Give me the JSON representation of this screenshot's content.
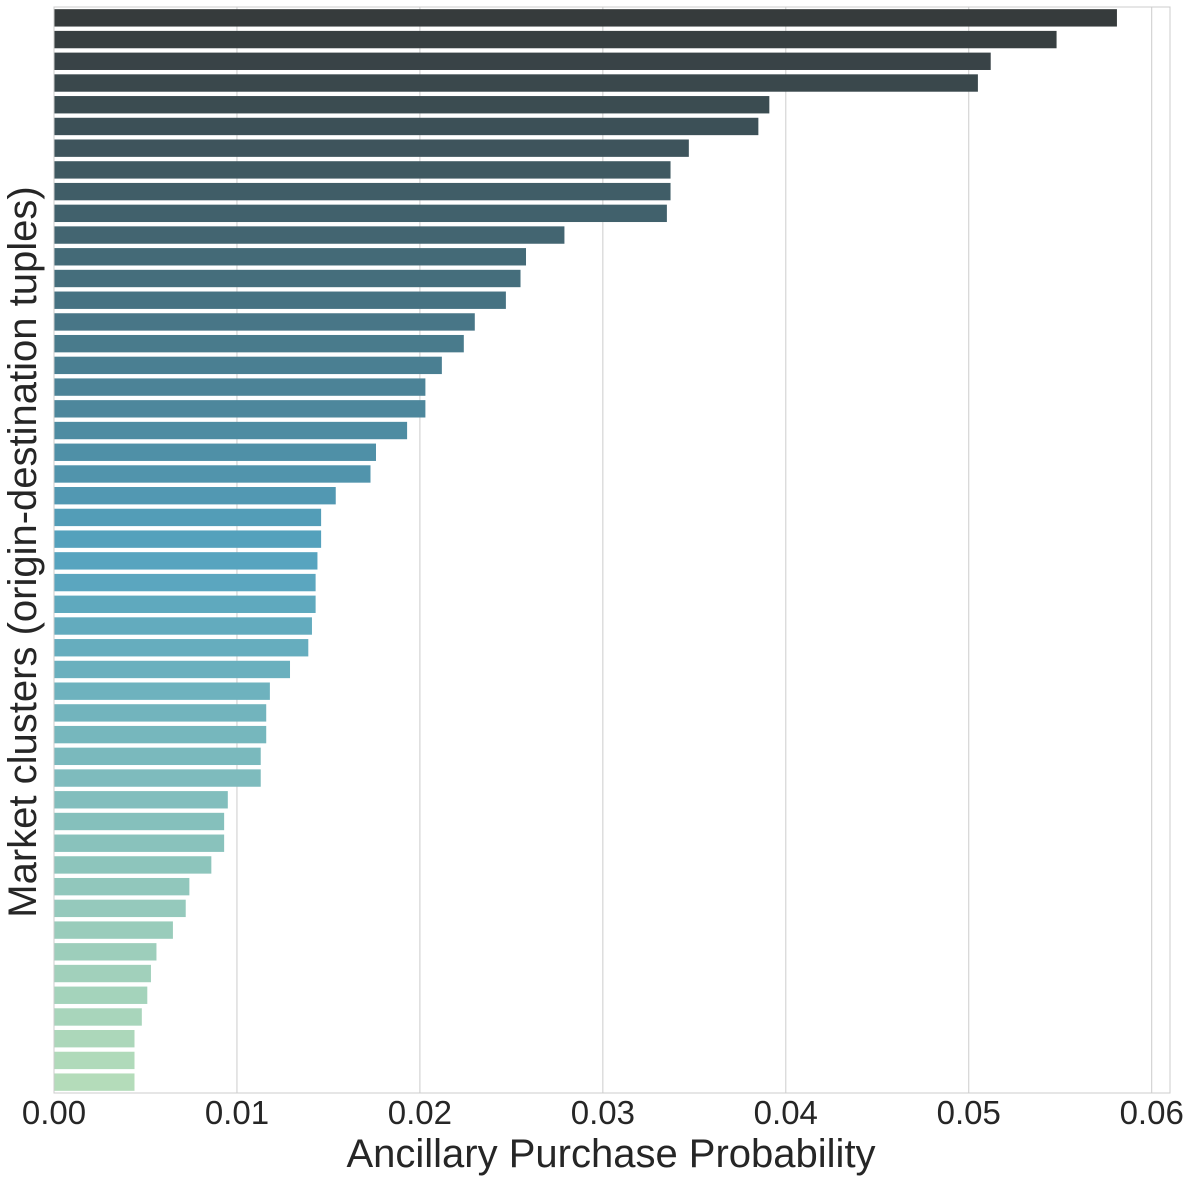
{
  "chart_data": {
    "type": "bar",
    "orientation": "horizontal",
    "xlabel": "Ancillary Purchase Probability",
    "ylabel": "Market clusters (origin-destination tuples)",
    "xlim": [
      0,
      0.061
    ],
    "xticks": [
      0.0,
      0.01,
      0.02,
      0.03,
      0.04,
      0.05,
      0.06
    ],
    "xtick_labels": [
      "0.00",
      "0.01",
      "0.02",
      "0.03",
      "0.04",
      "0.05",
      "0.06"
    ],
    "grid": "vertical",
    "palette": "GnBu_d",
    "values": [
      0.0581,
      0.0548,
      0.0512,
      0.0505,
      0.0391,
      0.0385,
      0.0347,
      0.0337,
      0.0337,
      0.0335,
      0.0279,
      0.0258,
      0.0255,
      0.0247,
      0.023,
      0.0224,
      0.0212,
      0.0203,
      0.0203,
      0.0193,
      0.0176,
      0.0173,
      0.0154,
      0.0146,
      0.0146,
      0.0144,
      0.0143,
      0.0143,
      0.0141,
      0.0139,
      0.0129,
      0.0118,
      0.0116,
      0.0116,
      0.0113,
      0.0113,
      0.0095,
      0.0093,
      0.0093,
      0.0086,
      0.0074,
      0.0072,
      0.0065,
      0.0056,
      0.0053,
      0.0051,
      0.0048,
      0.0044,
      0.0044,
      0.0044
    ],
    "colors": {
      "start": "#363B3C",
      "mid": "#55A3BF",
      "end": "#B4DCBA",
      "grid": "#CCCCCC",
      "spine": "#CCCCCC",
      "text": "#262626"
    }
  }
}
